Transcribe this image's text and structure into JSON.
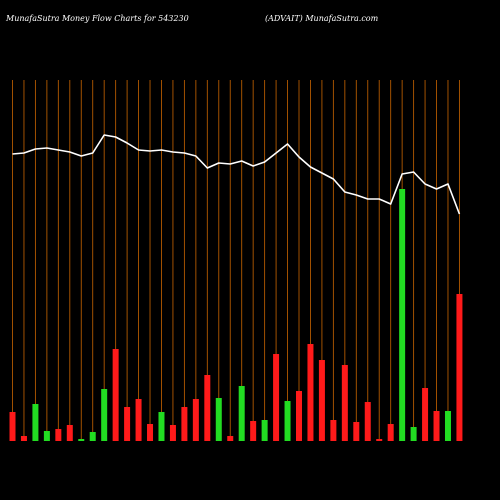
{
  "header": {
    "left": "MunafaSutra  Money Flow  Charts for 543230",
    "right": "(ADVAIT) MunafaSutra.com"
  },
  "chart_data": {
    "type": "bar",
    "title": "MunafaSutra  Money Flow  Charts for 543230",
    "subtitle": "(ADVAIT) MunafaSutra.com",
    "categories": [
      "",
      "",
      "",
      "",
      "",
      "",
      "",
      "",
      "",
      "",
      "",
      "",
      "",
      "",
      "",
      "",
      "",
      "",
      "",
      "",
      "",
      "",
      "",
      "",
      "",
      "",
      "",
      "",
      "",
      "",
      "",
      "",
      "",
      "",
      "",
      "",
      "",
      "",
      "",
      "",
      "",
      "",
      ""
    ],
    "bar_colors": {
      "up": "#22dd22",
      "down": "#ff1a1a"
    },
    "bar_values": [
      29,
      5,
      37,
      10,
      12,
      16,
      2,
      9,
      52,
      92,
      34,
      42,
      17,
      29,
      16,
      34,
      42,
      66,
      43,
      5,
      55,
      20,
      21,
      87,
      40,
      50,
      97,
      81,
      21,
      76,
      19,
      39,
      2,
      17,
      252,
      14,
      53,
      30,
      30,
      147
    ],
    "bar_direction": [
      "down",
      "down",
      "up",
      "up",
      "down",
      "down",
      "up",
      "up",
      "up",
      "down",
      "down",
      "down",
      "down",
      "up",
      "down",
      "down",
      "down",
      "down",
      "up",
      "down",
      "up",
      "down",
      "up",
      "down",
      "up",
      "down",
      "down",
      "down",
      "down",
      "down",
      "down",
      "down",
      "down",
      "down",
      "up",
      "up",
      "down",
      "down",
      "up",
      "down"
    ],
    "line_values": [
      287,
      288,
      292,
      293,
      291,
      289,
      285,
      288,
      306,
      304,
      298,
      291,
      290,
      291,
      289,
      288,
      285,
      273,
      278,
      277,
      280,
      275,
      279,
      288,
      297,
      284,
      274,
      268,
      262,
      249,
      246,
      242,
      242,
      237,
      267,
      269,
      257,
      252,
      257,
      227
    ],
    "line_color": "#ffffff",
    "grid": true,
    "grid_color": "#b35a00",
    "ylim": [
      0,
      310
    ]
  }
}
